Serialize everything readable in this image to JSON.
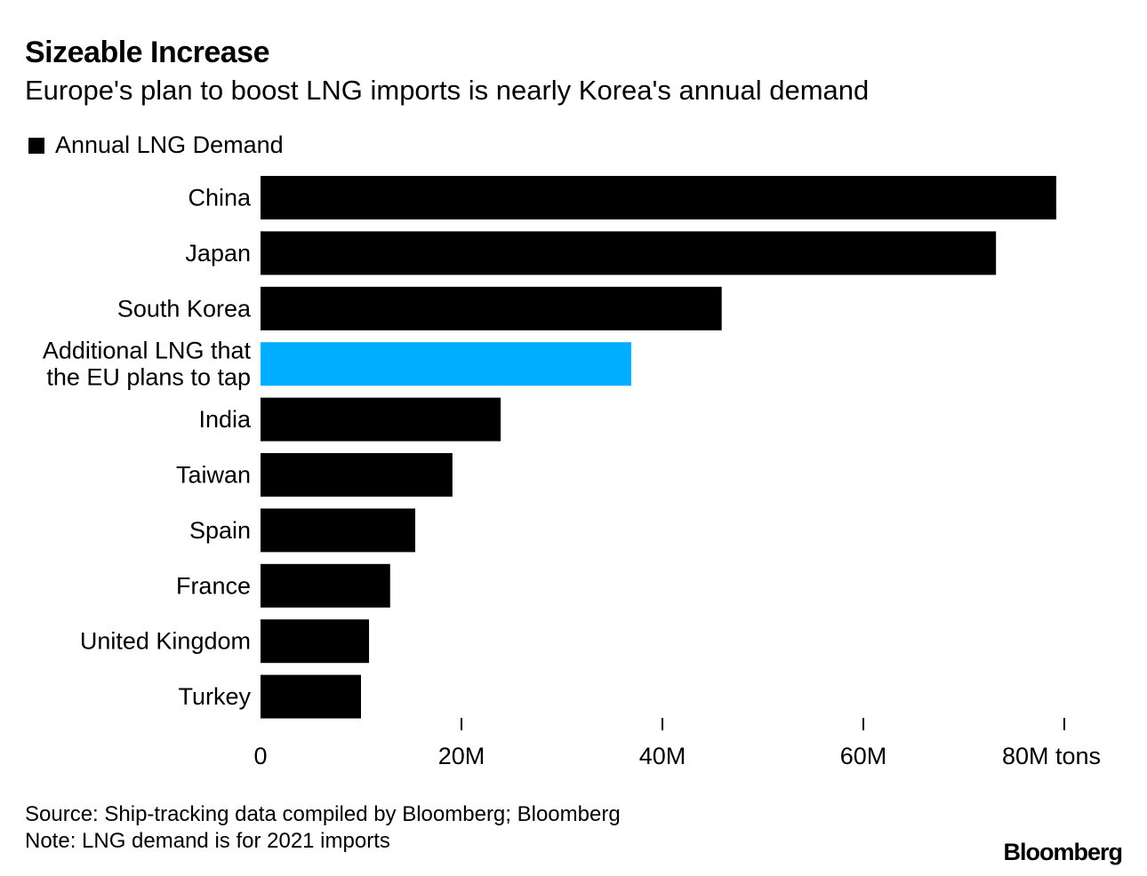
{
  "chart_data": {
    "type": "bar",
    "orientation": "horizontal",
    "title": "Sizeable Increase",
    "subtitle": "Europe's plan to boost LNG imports is nearly Korea's annual demand",
    "legend": [
      {
        "name": "Annual LNG Demand",
        "color": "#000000"
      }
    ],
    "legend_position": "top-left",
    "categories": [
      "China",
      "Japan",
      "South Korea",
      "Additional LNG that|the EU plans to tap",
      "India",
      "Taiwan",
      "Spain",
      "France",
      "United Kingdom",
      "Turkey"
    ],
    "values": [
      79.2,
      73.2,
      45.9,
      36.9,
      23.9,
      19.1,
      15.4,
      12.9,
      10.8,
      10.0
    ],
    "colors": [
      "#000000",
      "#000000",
      "#000000",
      "#00aeff",
      "#000000",
      "#000000",
      "#000000",
      "#000000",
      "#000000",
      "#000000"
    ],
    "xlim": [
      0,
      85
    ],
    "xticks": [
      0,
      20,
      40,
      60,
      80
    ],
    "xtick_labels": [
      "0",
      "20M",
      "40M",
      "60M",
      "80M tons"
    ],
    "grid": false
  },
  "footer": {
    "source": "Source: Ship-tracking data compiled by Bloomberg; Bloomberg",
    "note": "Note: LNG demand is for 2021 imports",
    "logo": "Bloomberg"
  }
}
